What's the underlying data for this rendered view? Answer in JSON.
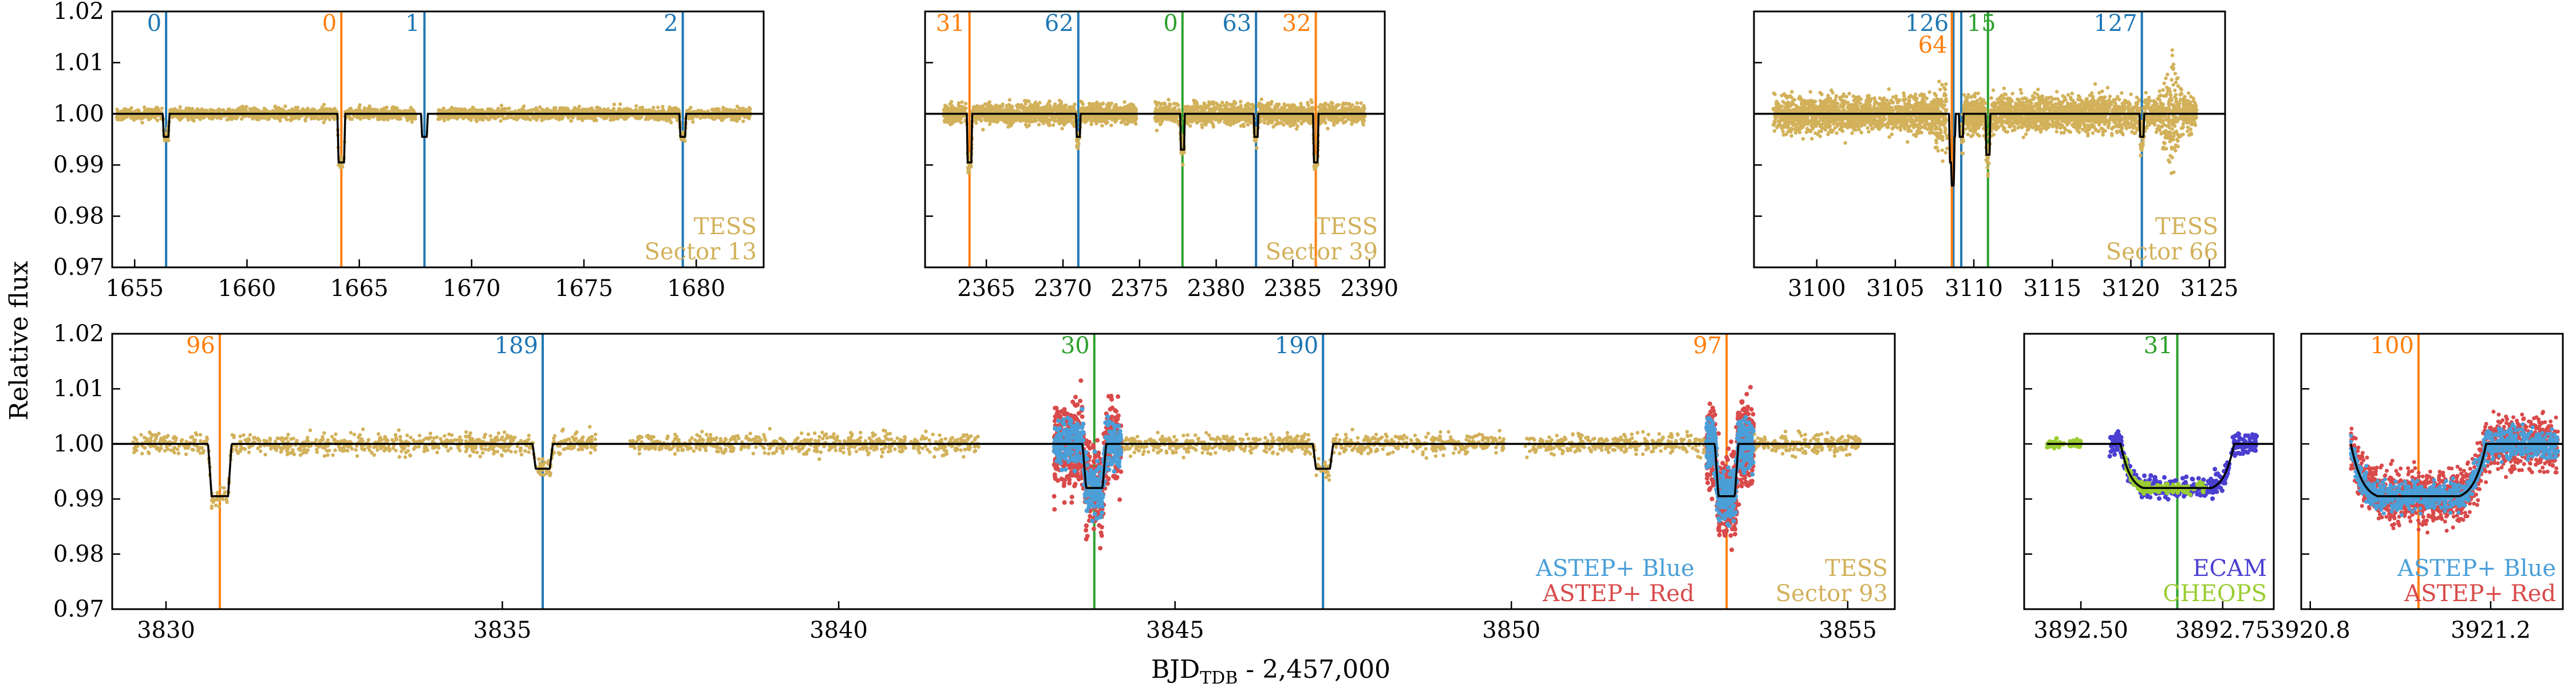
{
  "colors": {
    "tess": "#d2b15a",
    "blue": "#1f77b4",
    "orange": "#ff7f0e",
    "green": "#2ca02c",
    "astep_blue": "#4a9fd8",
    "astep_red": "#d94a4a",
    "ecam": "#4a3fd1",
    "cheops": "#9acd32",
    "model": "#000000"
  },
  "figure": {
    "ylabel": "Relative flux",
    "xlabel_main": "BJD",
    "xlabel_sub": "TDB",
    "xlabel_rest": " - 2,457,000"
  },
  "chart_data": [
    {
      "id": "p1",
      "type": "scatter",
      "xlim": [
        1654,
        1683
      ],
      "ylim": [
        0.97,
        1.02
      ],
      "xticks": [
        "1655",
        "1660",
        "1665",
        "1670",
        "1675",
        "1680"
      ],
      "yticks": [
        "0.97",
        "0.98",
        "0.99",
        "1.00",
        "1.01",
        "1.02"
      ],
      "segments": [
        [
          1654.2,
          1667.5
        ],
        [
          1668.5,
          1682.4
        ]
      ],
      "transits": [
        {
          "x": 1656.4,
          "label": "0",
          "color": "blue",
          "depth": 0.0045,
          "dur": 0.3
        },
        {
          "x": 1664.2,
          "label": "0",
          "color": "orange",
          "depth": 0.0095,
          "dur": 0.35
        },
        {
          "x": 1667.9,
          "label": "1",
          "color": "blue",
          "depth": 0.0045,
          "dur": 0.3
        },
        {
          "x": 1679.4,
          "label": "2",
          "color": "blue",
          "depth": 0.0045,
          "dur": 0.3
        }
      ],
      "instruments": [
        {
          "name": "TESS",
          "color": "tess"
        },
        {
          "name": "Sector 13",
          "color": "tess"
        }
      ],
      "noise": 0.0009,
      "density": 95
    },
    {
      "id": "p2",
      "type": "scatter",
      "xlim": [
        2361,
        2391
      ],
      "ylim": [
        0.97,
        1.02
      ],
      "xticks": [
        "2365",
        "2370",
        "2375",
        "2380",
        "2385",
        "2390"
      ],
      "yticks": [],
      "segments": [
        [
          2362.2,
          2374.8
        ],
        [
          2376.0,
          2389.7
        ]
      ],
      "transits": [
        {
          "x": 2363.9,
          "label": "31",
          "color": "orange",
          "depth": 0.0095,
          "dur": 0.35
        },
        {
          "x": 2371.0,
          "label": "62",
          "color": "blue",
          "depth": 0.0045,
          "dur": 0.3
        },
        {
          "x": 2377.8,
          "label": "0",
          "color": "green",
          "depth": 0.007,
          "dur": 0.3
        },
        {
          "x": 2382.6,
          "label": "63",
          "color": "blue",
          "depth": 0.0045,
          "dur": 0.3
        },
        {
          "x": 2386.5,
          "label": "32",
          "color": "orange",
          "depth": 0.0095,
          "dur": 0.35
        }
      ],
      "instruments": [
        {
          "name": "TESS",
          "color": "tess"
        },
        {
          "name": "Sector 39",
          "color": "tess"
        }
      ],
      "noise": 0.0015,
      "density": 110
    },
    {
      "id": "p3",
      "type": "scatter",
      "xlim": [
        3096,
        3126
      ],
      "ylim": [
        0.97,
        1.02
      ],
      "xticks": [
        "3100",
        "3105",
        "3110",
        "3115",
        "3120",
        "3125"
      ],
      "yticks": [],
      "segments": [
        [
          3097.2,
          3108.3
        ],
        [
          3109.2,
          3124.2
        ]
      ],
      "transits": [
        {
          "x": 3108.7,
          "label": "126",
          "color": "blue",
          "depth": 0.0045,
          "dur": 0.3
        },
        {
          "x": 3108.6,
          "label": "64",
          "color": "orange",
          "depth": 0.0095,
          "dur": 0.35
        },
        {
          "x": 3109.2,
          "label": "",
          "color": "blue",
          "depth": 0.0045,
          "dur": 0.3
        },
        {
          "x": 3110.9,
          "label": "15",
          "color": "green",
          "depth": 0.008,
          "dur": 0.3
        },
        {
          "x": 3120.7,
          "label": "127",
          "color": "blue",
          "depth": 0.0045,
          "dur": 0.3
        }
      ],
      "instruments": [
        {
          "name": "TESS",
          "color": "tess"
        },
        {
          "name": "Sector 66",
          "color": "tess"
        }
      ],
      "noise": 0.0027,
      "density": 140
    },
    {
      "id": "p4",
      "type": "scatter",
      "xlim": [
        3829.2,
        3855.7
      ],
      "ylim": [
        0.97,
        1.02
      ],
      "xticks": [
        "3830",
        "3835",
        "3840",
        "3845",
        "3850",
        "3855"
      ],
      "yticks": [
        "0.97",
        "0.98",
        "0.99",
        "1.00",
        "1.01",
        "1.02"
      ],
      "segments": [
        [
          3829.5,
          3836.4
        ],
        [
          3836.9,
          3842.1
        ],
        [
          3843.4,
          3849.9
        ],
        [
          3850.2,
          3855.2
        ]
      ],
      "transits": [
        {
          "x": 3830.8,
          "label": "96",
          "color": "orange",
          "depth": 0.0095,
          "dur": 0.35
        },
        {
          "x": 3835.6,
          "label": "189",
          "color": "blue",
          "depth": 0.0045,
          "dur": 0.3
        },
        {
          "x": 3843.8,
          "label": "30",
          "color": "green",
          "depth": 0.008,
          "dur": 0.35
        },
        {
          "x": 3847.2,
          "label": "190",
          "color": "blue",
          "depth": 0.0045,
          "dur": 0.3
        },
        {
          "x": 3853.2,
          "label": "97",
          "color": "orange",
          "depth": 0.0095,
          "dur": 0.35
        }
      ],
      "astep_windows": [
        [
          3843.2,
          3844.2
        ],
        [
          3852.9,
          3853.6
        ]
      ],
      "instruments": [
        {
          "name": "ASTEP+ Blue",
          "color": "astep_blue"
        },
        {
          "name": "ASTEP+ Red",
          "color": "astep_red"
        },
        {
          "name": "TESS",
          "color": "tess"
        },
        {
          "name": "Sector 93",
          "color": "tess"
        }
      ],
      "noise": 0.0014,
      "density": 120
    },
    {
      "id": "p5",
      "type": "scatter",
      "xlim": [
        3892.4,
        3892.84
      ],
      "ylim": [
        0.97,
        1.02
      ],
      "xticks": [
        "3892.50",
        "3892.75"
      ],
      "yticks": [],
      "transits": [
        {
          "x": 3892.67,
          "label": "31",
          "color": "green",
          "depth": 0.008,
          "dur": 0.2
        }
      ],
      "instruments": [
        {
          "name": "ECAM",
          "color": "ecam"
        },
        {
          "name": "CHEOPS",
          "color": "cheops"
        }
      ],
      "noise": 0.0013
    },
    {
      "id": "p6",
      "type": "scatter",
      "xlim": [
        3920.78,
        3921.36
      ],
      "ylim": [
        0.97,
        1.02
      ],
      "xticks": [
        "3920.8",
        "3921.2"
      ],
      "yticks": [],
      "transits": [
        {
          "x": 3921.04,
          "label": "100",
          "color": "orange",
          "depth": 0.0095,
          "dur": 0.3
        }
      ],
      "instruments": [
        {
          "name": "ASTEP+ Blue",
          "color": "astep_blue"
        },
        {
          "name": "ASTEP+ Red",
          "color": "astep_red"
        }
      ],
      "noise": 0.003
    }
  ]
}
